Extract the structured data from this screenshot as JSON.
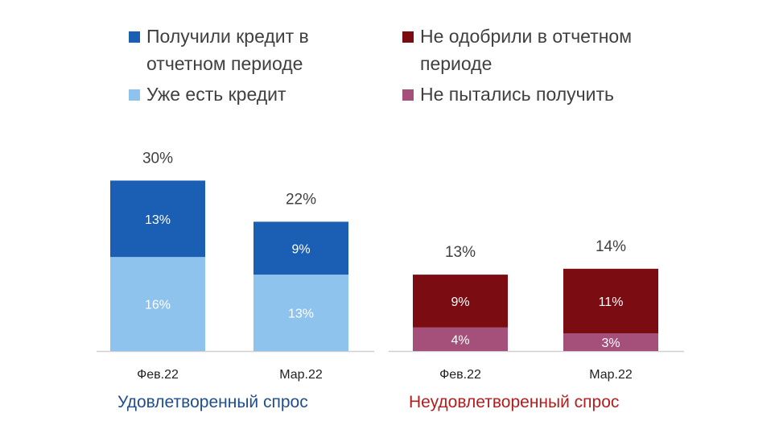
{
  "legend": [
    {
      "label": "Получили кредит в отчетном периоде",
      "color": "#1a5fb4"
    },
    {
      "label": "Уже есть кредит",
      "color": "#8ec3ee"
    },
    {
      "label": "Не одобрили в отчетном периоде",
      "color": "#7b0c12"
    },
    {
      "label": "Не пытались получить",
      "color": "#a4507a"
    }
  ],
  "group_labels": {
    "satisfied": "Удовлетворенный спрос",
    "unsatisfied": "Неудовлетворенный спрос"
  },
  "colors": {
    "satisfied_text": "#1f4e8c",
    "unsatisfied_text": "#b11e1e",
    "axis": "#d0d0d0",
    "label_text": "#404040"
  },
  "chart_data": {
    "type": "bar",
    "stacked": true,
    "groups": [
      {
        "name": "Удовлетворенный спрос",
        "categories": [
          "Фев.22",
          "Мар.22"
        ],
        "totals": [
          30,
          22
        ],
        "total_labels": [
          "30%",
          "22%"
        ],
        "series": [
          {
            "name": "Уже есть кредит",
            "values": [
              16,
              13
            ],
            "labels": [
              "16%",
              "13%"
            ],
            "color": "#8ec3ee"
          },
          {
            "name": "Получили кредит в отчетном периоде",
            "values": [
              13,
              9
            ],
            "labels": [
              "13%",
              "9%"
            ],
            "color": "#1a5fb4"
          }
        ]
      },
      {
        "name": "Неудовлетворенный спрос",
        "categories": [
          "Фев.22",
          "Мар.22"
        ],
        "totals": [
          13,
          14
        ],
        "total_labels": [
          "13%",
          "14%"
        ],
        "series": [
          {
            "name": "Не пытались получить",
            "values": [
              4,
              3
            ],
            "labels": [
              "4%",
              "3%"
            ],
            "color": "#a4507a"
          },
          {
            "name": "Не одобрили в отчетном периоде",
            "values": [
              9,
              11
            ],
            "labels": [
              "9%",
              "11%"
            ],
            "color": "#7b0c12"
          }
        ]
      }
    ],
    "ylim": [
      0,
      30
    ],
    "grid": false
  }
}
